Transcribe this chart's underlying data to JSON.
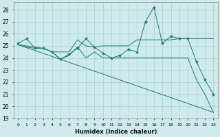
{
  "xlabel": "Humidex (Indice chaleur)",
  "background_color": "#ceeaea",
  "line_color": "#1a7a6e",
  "grid_color": "#aed0d0",
  "xlim": [
    -0.5,
    23.5
  ],
  "ylim": [
    19,
    28.6
  ],
  "yticks": [
    19,
    20,
    21,
    22,
    23,
    24,
    25,
    26,
    27,
    28
  ],
  "xticks": [
    0,
    1,
    2,
    3,
    4,
    5,
    6,
    7,
    8,
    9,
    10,
    11,
    12,
    13,
    14,
    15,
    16,
    17,
    18,
    19,
    20,
    21,
    22,
    23
  ],
  "lines": [
    {
      "x": [
        0,
        1,
        2,
        3,
        4,
        5,
        6,
        7,
        8,
        9,
        10,
        11,
        12,
        13,
        14,
        15,
        16,
        17,
        18,
        19,
        20,
        21,
        22,
        23
      ],
      "y": [
        25.2,
        25.6,
        24.8,
        24.8,
        24.5,
        23.9,
        24.3,
        24.8,
        25.6,
        24.9,
        24.4,
        24.0,
        24.2,
        24.7,
        24.5,
        27.0,
        28.2,
        25.2,
        25.8,
        25.6,
        25.6,
        23.7,
        22.2,
        21.0
      ],
      "has_marker": true
    },
    {
      "x": [
        0,
        1,
        2,
        3,
        4,
        5,
        6,
        7,
        8,
        9,
        10,
        11,
        12,
        13,
        14,
        15,
        16,
        17,
        18,
        19,
        20,
        21,
        22,
        23
      ],
      "y": [
        25.1,
        24.9,
        24.8,
        24.8,
        24.5,
        23.9,
        24.2,
        24.9,
        24.0,
        24.5,
        24.0,
        24.0,
        24.0,
        24.0,
        24.0,
        24.0,
        24.0,
        24.0,
        24.0,
        24.0,
        24.0,
        22.2,
        21.0,
        19.5
      ],
      "has_marker": false
    },
    {
      "x": [
        0,
        23
      ],
      "y": [
        25.1,
        19.5
      ],
      "has_marker": false
    },
    {
      "x": [
        0,
        1,
        2,
        3,
        4,
        5,
        6,
        7,
        8,
        9,
        10,
        11,
        12,
        13,
        14,
        15,
        16,
        17,
        18,
        19,
        20,
        21,
        22,
        23
      ],
      "y": [
        25.1,
        25.0,
        24.9,
        24.8,
        24.5,
        24.5,
        24.5,
        25.5,
        25.0,
        24.9,
        25.0,
        25.0,
        25.0,
        25.0,
        25.5,
        25.5,
        25.5,
        25.5,
        25.5,
        25.6,
        25.6,
        25.6,
        25.6,
        25.6
      ],
      "has_marker": false
    }
  ]
}
